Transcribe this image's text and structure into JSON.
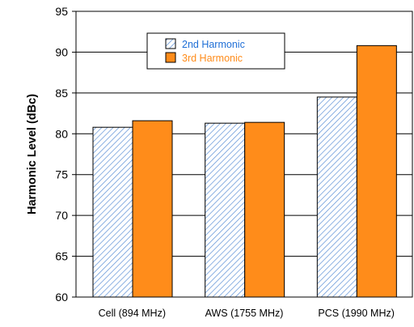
{
  "chart_data": {
    "type": "bar",
    "title": "",
    "xlabel": "",
    "ylabel": "Harmonic Level (dBc)",
    "categories": [
      "Cell (894 MHz)",
      "AWS (1755 MHz)",
      "PCS (1990 MHz)"
    ],
    "series": [
      {
        "name": "2nd Harmonic",
        "values": [
          80.8,
          81.3,
          84.5
        ],
        "color": "#5b8fd6",
        "pattern": "diagonal-hatch"
      },
      {
        "name": "3rd Harmonic",
        "values": [
          81.6,
          81.4,
          90.8
        ],
        "color": "#ff8c1a",
        "pattern": "solid"
      }
    ],
    "ylim": [
      60,
      95
    ],
    "yticks": [
      60,
      65,
      70,
      75,
      80,
      85,
      90,
      95
    ],
    "grid": "horizontal",
    "legend": "top-center",
    "legend_text_colors": [
      "#1f6fd6",
      "#ff8c1a"
    ]
  }
}
